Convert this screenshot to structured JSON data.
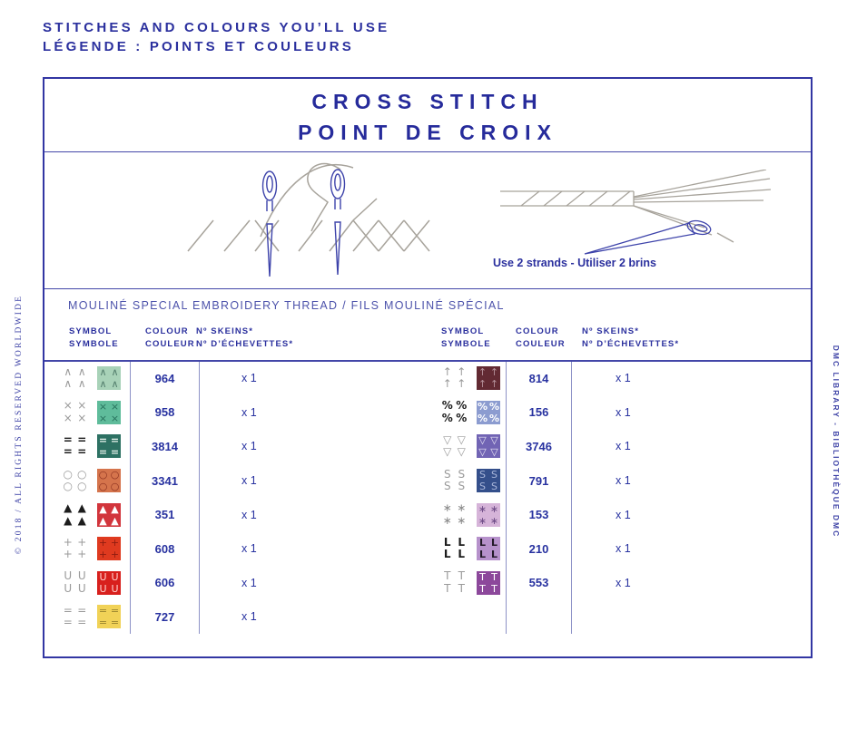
{
  "page": {
    "header_line1": "STITCHES AND COLOURS YOU’LL USE",
    "header_line2": "LÉGENDE : POINTS ET COULEURS",
    "side_left": "© 2018 / ALL RIGHTS RESERVED WORLDWIDE",
    "side_right": "DMC LIBRARY - BIBLIOTHÈQUE DMC"
  },
  "panel": {
    "title_line1": "CROSS STITCH",
    "title_line2": "POINT DE CROIX",
    "caption": "Use 2 strands - Utiliser 2 brins",
    "section_heading": "MOULINÉ SPECIAL EMBROIDERY THREAD / FILS MOULINÉ SPÉCIAL"
  },
  "legend": {
    "headers": {
      "symbol_en": "SYMBOL",
      "symbol_fr": "SYMBOLE",
      "colour_en": "COLOUR",
      "colour_fr": "COULEUR",
      "skeins_en": "Nº SKEINS*",
      "skeins_fr": "Nº D’ÉCHEVETTES*"
    },
    "left_rows": [
      {
        "glyph": "∧",
        "glyph_color": "#9a9a9a",
        "heavy": false,
        "swatch_bg": "#a8d2b8",
        "swatch_glyph": "#527d6c",
        "number": "964",
        "skeins": "x 1"
      },
      {
        "glyph": "×",
        "glyph_color": "#9a9a9a",
        "heavy": false,
        "swatch_bg": "#5fbc9b",
        "swatch_glyph": "#27725d",
        "number": "958",
        "skeins": "x 1"
      },
      {
        "glyph": "=",
        "glyph_color": "#1c1c1c",
        "heavy": true,
        "swatch_bg": "#2d7163",
        "swatch_glyph": "#e8f3ec",
        "number": "3814",
        "skeins": "x 1"
      },
      {
        "glyph": "○",
        "glyph_color": "#9a9a9a",
        "heavy": false,
        "swatch_bg": "#d5744c",
        "swatch_glyph": "#8c3220",
        "number": "3341",
        "skeins": "x 1"
      },
      {
        "glyph": "▲",
        "glyph_color": "#1c1c1c",
        "heavy": false,
        "swatch_bg": "#d2353c",
        "swatch_glyph": "#ffffff",
        "number": "351",
        "skeins": "x 1"
      },
      {
        "glyph": "+",
        "glyph_color": "#9a9a9a",
        "heavy": false,
        "swatch_bg": "#df3a1f",
        "swatch_glyph": "#8f1d10",
        "number": "608",
        "skeins": "x 1"
      },
      {
        "glyph": "U",
        "glyph_color": "#9a9a9a",
        "heavy": false,
        "swatch_bg": "#d8201d",
        "swatch_glyph": "#ffd2cf",
        "number": "606",
        "skeins": "x 1"
      },
      {
        "glyph": "=",
        "glyph_color": "#9a9a9a",
        "heavy": false,
        "swatch_bg": "#f1d257",
        "swatch_glyph": "#97832d",
        "number": "727",
        "skeins": "x 1"
      }
    ],
    "right_rows": [
      {
        "glyph": "↑",
        "glyph_color": "#9a9a9a",
        "heavy": false,
        "swatch_bg": "#622a33",
        "swatch_glyph": "#b39099",
        "number": "814",
        "skeins": "x 1"
      },
      {
        "glyph": "%",
        "glyph_color": "#1c1c1c",
        "heavy": true,
        "swatch_bg": "#8c9cd0",
        "swatch_glyph": "#ffffff",
        "number": "156",
        "skeins": "x 1"
      },
      {
        "glyph": "▽",
        "glyph_color": "#9a9a9a",
        "heavy": false,
        "swatch_bg": "#7164b4",
        "swatch_glyph": "#e9e6f5",
        "number": "3746",
        "skeins": "x 1"
      },
      {
        "glyph": "S",
        "glyph_color": "#9a9a9a",
        "heavy": false,
        "swatch_bg": "#344f8b",
        "swatch_glyph": "#a9b6da",
        "number": "791",
        "skeins": "x 1"
      },
      {
        "glyph": "∗",
        "glyph_color": "#8a8a8a",
        "heavy": false,
        "swatch_bg": "#d6b4d9",
        "swatch_glyph": "#6d4a86",
        "number": "153",
        "skeins": "x 1"
      },
      {
        "glyph": "L",
        "glyph_color": "#1c1c1c",
        "heavy": true,
        "swatch_bg": "#b691cb",
        "swatch_glyph": "#221a28",
        "number": "210",
        "skeins": "x 1"
      },
      {
        "glyph": "T",
        "glyph_color": "#9a9a9a",
        "heavy": false,
        "swatch_bg": "#8c489b",
        "swatch_glyph": "#ffffff",
        "number": "553",
        "skeins": "x 1"
      }
    ]
  },
  "colors": {
    "primary_blue": "#2b309e",
    "separator": "#8d92c7",
    "illustration_gray": "#a7a39b",
    "needle_blue": "#3d43aa"
  }
}
